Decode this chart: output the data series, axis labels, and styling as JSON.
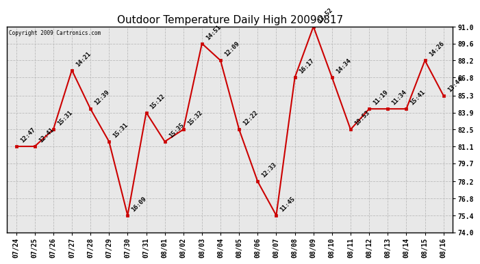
{
  "title": "Outdoor Temperature Daily High 20090817",
  "copyright": "Copyright 2009 Cartronics.com",
  "x_labels": [
    "07/24",
    "07/25",
    "07/26",
    "07/27",
    "07/28",
    "07/29",
    "07/30",
    "07/31",
    "08/01",
    "08/02",
    "08/03",
    "08/04",
    "08/05",
    "08/06",
    "08/07",
    "08/08",
    "08/09",
    "08/10",
    "08/11",
    "08/12",
    "08/13",
    "08/14",
    "08/15",
    "08/16"
  ],
  "y_values": [
    81.1,
    81.1,
    82.5,
    87.4,
    84.2,
    81.5,
    75.4,
    83.9,
    81.5,
    82.5,
    89.6,
    88.2,
    82.5,
    78.2,
    75.4,
    86.8,
    91.0,
    86.8,
    82.5,
    84.2,
    84.2,
    84.2,
    88.2,
    85.3
  ],
  "point_labels": [
    "12:47",
    "12:41",
    "15:31",
    "14:21",
    "12:39",
    "15:31",
    "16:09",
    "15:12",
    "15:35",
    "15:32",
    "14:51",
    "12:09",
    "12:22",
    "12:33",
    "11:45",
    "16:17",
    "13:52",
    "14:34",
    "10:53",
    "11:19",
    "11:34",
    "15:41",
    "14:26",
    "13:44"
  ],
  "ylim": [
    74.0,
    91.0
  ],
  "yticks": [
    74.0,
    75.4,
    76.8,
    78.2,
    79.7,
    81.1,
    82.5,
    83.9,
    85.3,
    86.8,
    88.2,
    89.6,
    91.0
  ],
  "line_color": "#cc0000",
  "marker_color": "#cc0000",
  "bg_color": "#e8e8e8",
  "grid_color": "#bbbbbb",
  "title_fontsize": 11,
  "tick_fontsize": 7,
  "point_label_fontsize": 6.5
}
